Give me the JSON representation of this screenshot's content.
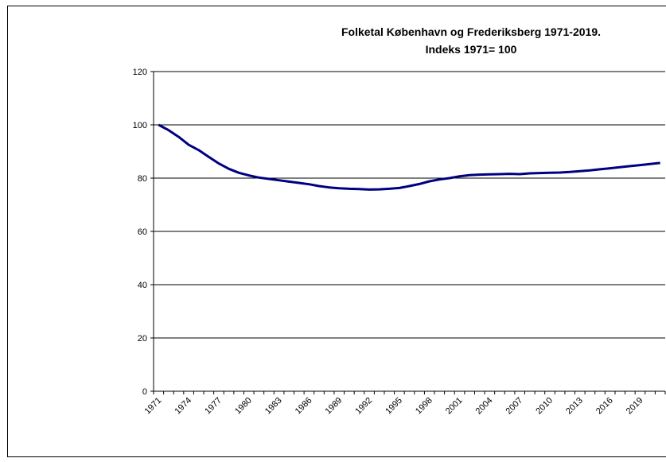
{
  "chart_data": {
    "type": "line",
    "title": "Folketal  København og Frederiksberg 1971-2019.",
    "subtitle": "Indeks 1971= 100",
    "categories": [
      "1971",
      null,
      null,
      "1974",
      null,
      null,
      "1977",
      null,
      null,
      "1980",
      null,
      null,
      "1983",
      null,
      null,
      "1986",
      null,
      null,
      "1989",
      null,
      null,
      "1992",
      null,
      null,
      "1995",
      null,
      null,
      "1998",
      null,
      null,
      "2001",
      null,
      null,
      "2004",
      null,
      null,
      "2007",
      null,
      null,
      "2010",
      null,
      null,
      "2013",
      null,
      null,
      "2016",
      null,
      null,
      "2019",
      null,
      null
    ],
    "series": [
      {
        "name": null,
        "color": "#000080",
        "values": [
          100,
          98,
          95.5,
          92.5,
          90.5,
          88,
          85.5,
          83.5,
          82,
          81,
          80.2,
          79.7,
          79.2,
          78.7,
          78.2,
          77.7,
          77,
          76.5,
          76.2,
          76,
          75.9,
          75.7,
          75.8,
          76,
          76.3,
          77,
          77.8,
          78.8,
          79.5,
          80,
          80.7,
          81.1,
          81.3,
          81.4,
          81.5,
          81.6,
          81.5,
          81.8,
          81.9,
          82,
          82.1,
          82.3,
          82.6,
          82.9,
          83.3,
          83.7,
          84.1,
          84.5,
          84.9,
          85.3,
          85.7
        ]
      }
    ],
    "ylim": [
      0,
      120
    ],
    "yticks": [
      0,
      20,
      40,
      60,
      80,
      100,
      120
    ],
    "grid": true
  }
}
